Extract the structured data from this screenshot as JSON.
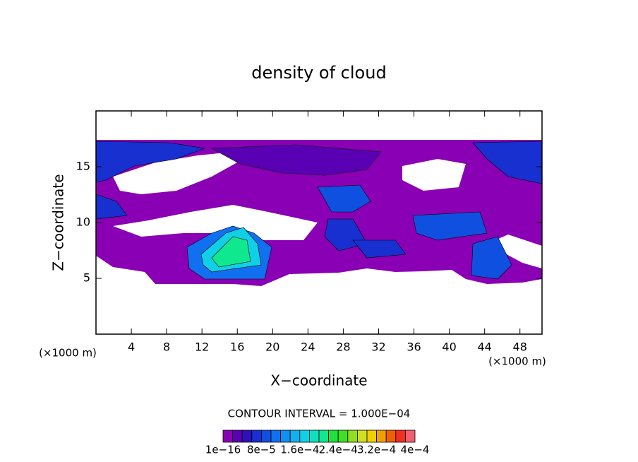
{
  "chart_data": {
    "type": "contour",
    "title": "density of cloud",
    "x_label": "X−coordinate",
    "y_label": "Z−coordinate",
    "x_unit_left": "(×1000 m)",
    "x_unit_right": "(×1000 m)",
    "contour_interval": "CONTOUR INTERVAL = 1.000E−04",
    "xlim": [
      0,
      50.5
    ],
    "ylim": [
      0,
      20
    ],
    "xticks": [
      4,
      8,
      12,
      16,
      20,
      24,
      28,
      32,
      36,
      40,
      44,
      48
    ],
    "yticks": [
      5,
      10,
      15
    ],
    "levels": [
      {
        "value": 1e-16,
        "label": "1e−16"
      },
      2e-05,
      4e-05,
      6e-05,
      {
        "value": 8e-05,
        "label": "8e−5"
      },
      0.0001,
      0.00012,
      0.00014,
      {
        "value": 0.00016,
        "label": "1.6e−4"
      },
      0.00018,
      0.0002,
      0.00022,
      {
        "value": 0.00024,
        "label": "2.4e−4"
      },
      0.00026,
      0.00028,
      0.0003,
      {
        "value": 0.00032,
        "label": "3.2e−4"
      },
      0.00034,
      0.00036,
      0.00038,
      {
        "value": 0.0004,
        "label": "4e−4"
      }
    ],
    "colors": [
      "#8a00b4",
      "#5a00b4",
      "#3010b8",
      "#1830d0",
      "#1050e0",
      "#1070f0",
      "#1090f0",
      "#10b0f0",
      "#10d0e8",
      "#10e0c0",
      "#10e890",
      "#20e040",
      "#40e020",
      "#90e020",
      "#d0e020",
      "#f0d000",
      "#f0a000",
      "#f06000",
      "#f03020",
      "#f06070"
    ]
  }
}
